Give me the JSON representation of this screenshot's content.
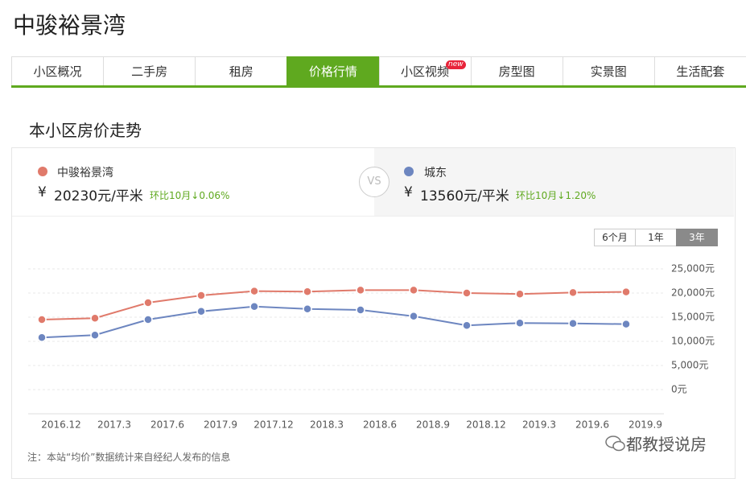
{
  "header": {
    "title": "中骏裕景湾"
  },
  "tabs": [
    {
      "label": "小区概况"
    },
    {
      "label": "二手房"
    },
    {
      "label": "租房"
    },
    {
      "label": "价格行情",
      "active": true
    },
    {
      "label": "小区视频",
      "badge": "new"
    },
    {
      "label": "房型图"
    },
    {
      "label": "实景图"
    },
    {
      "label": "生活配套"
    }
  ],
  "section_title": "本小区房价走势",
  "summary": {
    "left": {
      "name": "中骏裕景湾",
      "currency": "¥",
      "price": "20230元/平米",
      "change": "环比10月↓0.06%"
    },
    "vs": "VS",
    "right": {
      "name": "城东",
      "currency": "¥",
      "price": "13560元/平米",
      "change": "环比10月↓1.20%"
    }
  },
  "range_buttons": [
    {
      "label": "6个月"
    },
    {
      "label": "1年"
    },
    {
      "label": "3年",
      "active": true
    }
  ],
  "chart_data": {
    "type": "line",
    "categories": [
      "2016.12",
      "2017.3",
      "2017.6",
      "2017.9",
      "2017.12",
      "2018.3",
      "2018.6",
      "2018.9",
      "2018.12",
      "2019.3",
      "2019.6",
      "2019.9"
    ],
    "series": [
      {
        "name": "中骏裕景湾",
        "color": "#e07a6b",
        "values": [
          14500,
          14800,
          18000,
          19500,
          20400,
          20300,
          20600,
          20600,
          20000,
          19800,
          20100,
          20230
        ]
      },
      {
        "name": "城东",
        "color": "#6d86c0",
        "values": [
          10800,
          11300,
          14500,
          16200,
          17200,
          16700,
          16500,
          15200,
          13300,
          13800,
          13700,
          13560
        ]
      }
    ],
    "ylim": [
      0,
      25000
    ],
    "yticks": [
      {
        "value": 25000,
        "label": "25,000元"
      },
      {
        "value": 20000,
        "label": "20,000元"
      },
      {
        "value": 15000,
        "label": "15,000元"
      },
      {
        "value": 10000,
        "label": "10,000元"
      },
      {
        "value": 5000,
        "label": "5,000元"
      },
      {
        "value": 0,
        "label": "0元"
      }
    ],
    "grid": true
  },
  "footer_note": "注：本站“均价”数据统计来自经纪人发布的信息",
  "watermark": "都教授说房"
}
